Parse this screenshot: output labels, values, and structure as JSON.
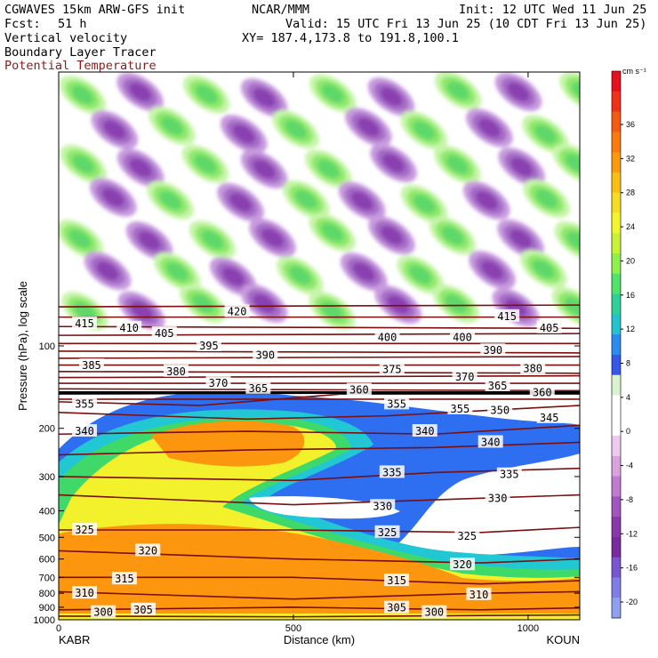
{
  "header": {
    "model": "CGWAVES 15km ARW-GFS init",
    "org": "NCAR/MMM",
    "init": "Init: 12 UTC Wed 11 Jun 25",
    "fcst_label": "Fcst:",
    "fcst_value": "51 h",
    "valid": "Valid: 15 UTC Fri 13 Jun 25 (10 CDT Fri 13 Jun 25)",
    "xy": "XY= 187.4,173.8 to 191.8,100.1",
    "field1": "Vertical velocity",
    "field2": "Boundary Layer Tracer",
    "field3": "Potential Temperature"
  },
  "colors": {
    "theta_line": "#7a0f0f",
    "frame": "#000000"
  },
  "chart_data": {
    "type": "heatmap",
    "xlabel": "Distance (km)",
    "ylabel": "Pressure (hPa), log scale",
    "xlim": [
      0,
      1110
    ],
    "ylim": [
      1000,
      10
    ],
    "x_ticks": [
      "0",
      "500",
      "1000"
    ],
    "x_tick_values": [
      0,
      500,
      1000
    ],
    "y_ticks": [
      "100",
      "200",
      "300",
      "400",
      "500",
      "600",
      "700",
      "800",
      "900",
      "1000"
    ],
    "y_tick_values": [
      100,
      200,
      300,
      400,
      500,
      600,
      700,
      800,
      900,
      1000
    ],
    "left_endpoint": "KABR",
    "right_endpoint": "KOUN",
    "colorbar": {
      "units": "cm s⁻¹",
      "tick_labels": [
        "36",
        "32",
        "28",
        "24",
        "20",
        "16",
        "12",
        "8",
        "4",
        "0",
        "-4",
        "-8",
        "-12",
        "-16",
        "-20"
      ],
      "colors": [
        "#e8101c",
        "#f0301a",
        "#f55a12",
        "#fa7a0e",
        "#fb9a0c",
        "#fbbf12",
        "#f6dd22",
        "#f3f52c",
        "#c8f236",
        "#8ef04a",
        "#4fe36a",
        "#2ed19a",
        "#22c2cf",
        "#2a8cf0",
        "#3557ea",
        "#d9f2d0",
        "#ffffff",
        "#ffffff",
        "#efcaef",
        "#d9a3e0",
        "#c07bd0",
        "#a355be",
        "#8a37aa",
        "#7a2a9f",
        "#7a55d2",
        "#7f7ee6",
        "#8ea0ef"
      ]
    },
    "theta_contour_labels": [
      {
        "label": "415",
        "x": 55,
        "p": 83
      },
      {
        "label": "410",
        "x": 150,
        "p": 86
      },
      {
        "label": "405",
        "x": 225,
        "p": 90
      },
      {
        "label": "420",
        "x": 380,
        "p": 75
      },
      {
        "label": "400",
        "x": 700,
        "p": 93
      },
      {
        "label": "400",
        "x": 860,
        "p": 93
      },
      {
        "label": "415",
        "x": 955,
        "p": 78
      },
      {
        "label": "405",
        "x": 1045,
        "p": 86
      },
      {
        "label": "395",
        "x": 320,
        "p": 100
      },
      {
        "label": "390",
        "x": 440,
        "p": 108
      },
      {
        "label": "390",
        "x": 925,
        "p": 104
      },
      {
        "label": "385",
        "x": 70,
        "p": 118
      },
      {
        "label": "380",
        "x": 250,
        "p": 124
      },
      {
        "label": "375",
        "x": 710,
        "p": 122
      },
      {
        "label": "370",
        "x": 340,
        "p": 137
      },
      {
        "label": "370",
        "x": 865,
        "p": 130
      },
      {
        "label": "365",
        "x": 425,
        "p": 143
      },
      {
        "label": "365",
        "x": 935,
        "p": 140
      },
      {
        "label": "380",
        "x": 1010,
        "p": 121
      },
      {
        "label": "360",
        "x": 640,
        "p": 145
      },
      {
        "label": "360",
        "x": 1030,
        "p": 148
      },
      {
        "label": "355",
        "x": 55,
        "p": 163
      },
      {
        "label": "355",
        "x": 720,
        "p": 163
      },
      {
        "label": "355",
        "x": 855,
        "p": 170
      },
      {
        "label": "350",
        "x": 940,
        "p": 172
      },
      {
        "label": "345",
        "x": 1045,
        "p": 183
      },
      {
        "label": "340",
        "x": 55,
        "p": 205
      },
      {
        "label": "340",
        "x": 780,
        "p": 205
      },
      {
        "label": "340",
        "x": 920,
        "p": 225
      },
      {
        "label": "335",
        "x": 710,
        "p": 290
      },
      {
        "label": "335",
        "x": 960,
        "p": 295
      },
      {
        "label": "330",
        "x": 690,
        "p": 385
      },
      {
        "label": "330",
        "x": 935,
        "p": 360
      },
      {
        "label": "325",
        "x": 55,
        "p": 470
      },
      {
        "label": "325",
        "x": 700,
        "p": 480
      },
      {
        "label": "325",
        "x": 870,
        "p": 495
      },
      {
        "label": "320",
        "x": 190,
        "p": 560
      },
      {
        "label": "320",
        "x": 860,
        "p": 630
      },
      {
        "label": "315",
        "x": 140,
        "p": 710
      },
      {
        "label": "315",
        "x": 720,
        "p": 720
      },
      {
        "label": "310",
        "x": 55,
        "p": 800
      },
      {
        "label": "310",
        "x": 895,
        "p": 810
      },
      {
        "label": "305",
        "x": 180,
        "p": 920
      },
      {
        "label": "305",
        "x": 720,
        "p": 905
      },
      {
        "label": "300",
        "x": 95,
        "p": 940
      },
      {
        "label": "300",
        "x": 800,
        "p": 940
      }
    ]
  }
}
